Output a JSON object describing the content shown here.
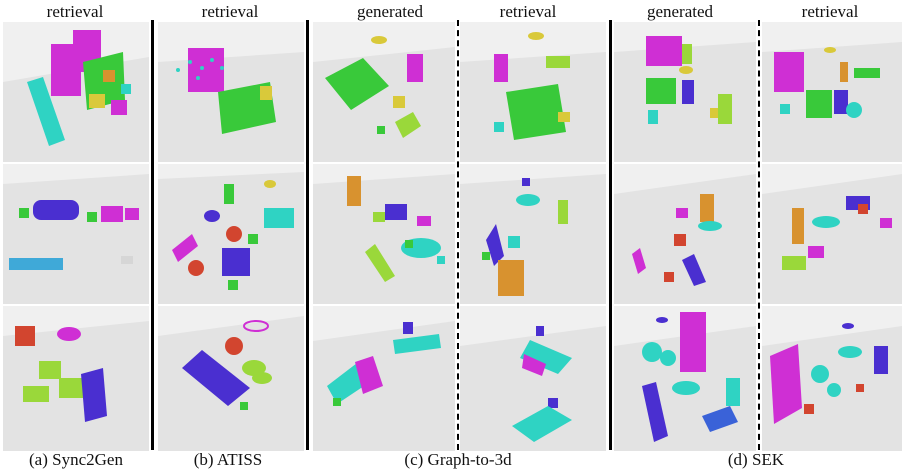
{
  "headers": {
    "col1": "retrieval",
    "col2": "retrieval",
    "col3": "generated",
    "col4": "retrieval",
    "col5": "generated",
    "col6": "retrieval"
  },
  "captions": {
    "a": "(a) Sync2Gen",
    "b": "(b) ATISS",
    "c": "(c) Graph-to-3d",
    "d": "(d) SEK"
  },
  "colors": {
    "floor": "#e3e3e3",
    "background": "#f0f0f0",
    "magenta": "#cf2fd4",
    "green": "#39c93a",
    "cyan": "#2fd3c3",
    "blue": "#4a2fd0",
    "lime": "#9ad83a",
    "orange": "#d8922f",
    "yellow": "#d9c93a",
    "red": "#d2452f"
  }
}
